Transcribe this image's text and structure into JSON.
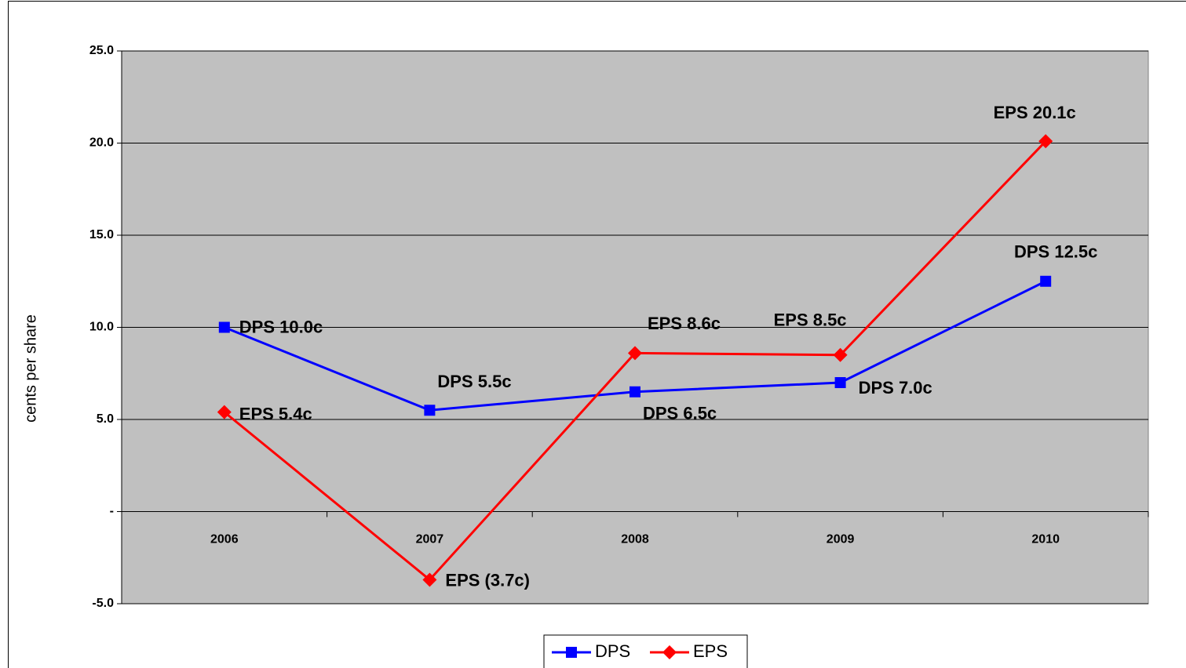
{
  "chart_data": {
    "type": "line",
    "y_label": "cents per share",
    "categories": [
      "2006",
      "2007",
      "2008",
      "2009",
      "2010"
    ],
    "series": [
      {
        "name": "DPS",
        "color": "#0000ff",
        "marker": "square",
        "values": [
          10.0,
          5.5,
          6.5,
          7.0,
          12.5
        ],
        "value_labels": [
          "DPS 10.0c",
          "DPS 5.5c",
          "DPS 6.5c",
          "DPS 7.0c",
          "DPS 12.5c"
        ]
      },
      {
        "name": "EPS",
        "color": "#ff0000",
        "marker": "diamond",
        "values": [
          5.4,
          -3.7,
          8.6,
          8.5,
          20.1
        ],
        "value_labels": [
          "EPS 5.4c",
          "EPS (3.7c)",
          "EPS 8.6c",
          "EPS 8.5c",
          "EPS 20.1c"
        ]
      }
    ],
    "ylim": [
      -5,
      25
    ],
    "yticks": [
      {
        "value": -5,
        "label": "-5.0"
      },
      {
        "value": 0,
        "label": "-"
      },
      {
        "value": 5,
        "label": "5.0"
      },
      {
        "value": 10,
        "label": "10.0"
      },
      {
        "value": 15,
        "label": "15.0"
      },
      {
        "value": 20,
        "label": "20.0"
      },
      {
        "value": 25,
        "label": "25.0"
      }
    ],
    "grid": true,
    "plot_background": "#c0c0c0",
    "legend": "bottom"
  }
}
